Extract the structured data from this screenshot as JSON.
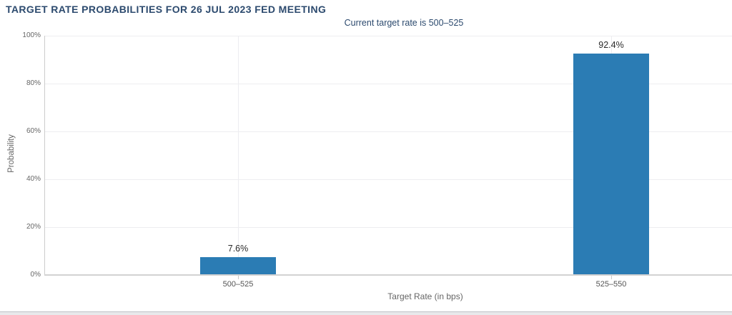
{
  "header": {
    "title": "TARGET RATE PROBABILITIES FOR 26 JUL 2023 FED MEETING",
    "subtitle": "Current target rate is 500–525"
  },
  "colors": {
    "bar": "#2b7cb4",
    "heading_text": "#2c4a6e",
    "grid": "#ededf0",
    "axis_line": "#cccccc",
    "baseline": "#d2d2d2"
  },
  "chart_data": {
    "type": "bar",
    "title": "TARGET RATE PROBABILITIES FOR 26 JUL 2023 FED MEETING",
    "subtitle": "Current target rate is 500–525",
    "categories": [
      "500–525",
      "525–550"
    ],
    "values": [
      7.6,
      92.4
    ],
    "value_labels": [
      "7.6%",
      "92.4%"
    ],
    "xlabel": "Target Rate (in bps)",
    "ylabel": "Probability",
    "ylim": [
      0,
      100
    ],
    "yticks": [
      0,
      20,
      40,
      60,
      80,
      100
    ],
    "ytick_labels": [
      "0%",
      "20%",
      "40%",
      "60%",
      "80%",
      "100%"
    ],
    "grid": "horizontal gridlines at 20% steps, vertical gridline at each category center",
    "legend": "none",
    "bar_color": "#2b7cb4"
  }
}
